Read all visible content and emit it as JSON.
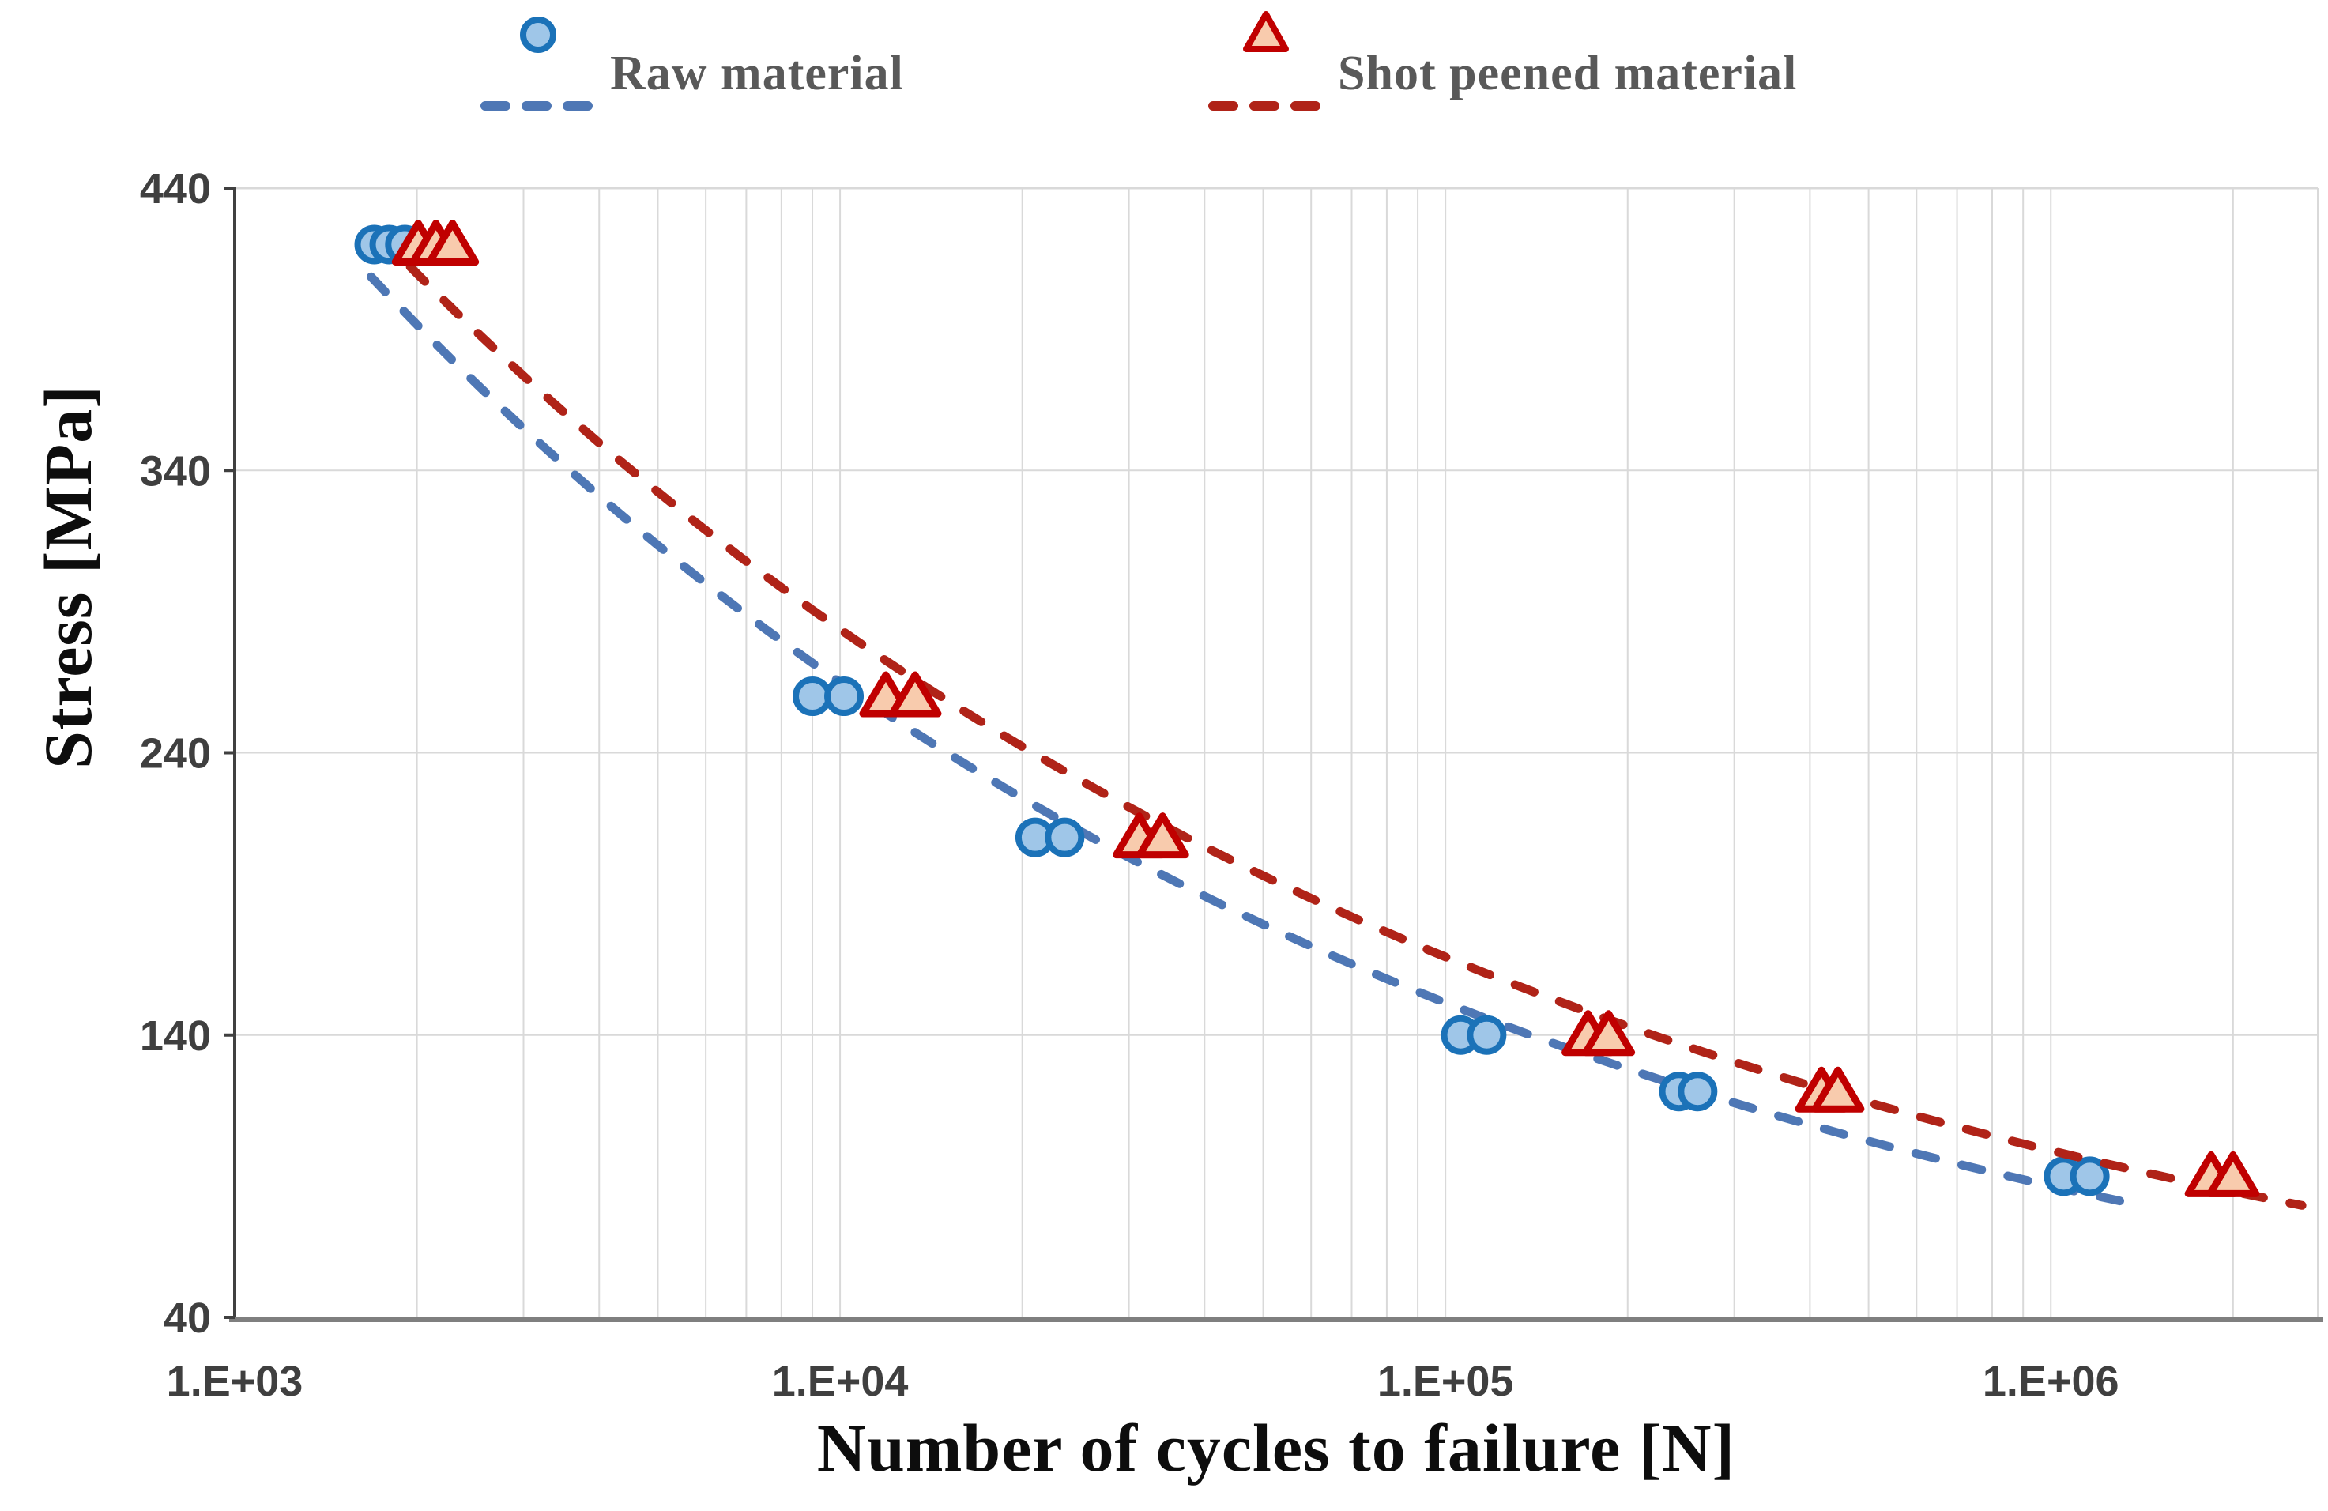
{
  "chart_data": {
    "type": "scatter",
    "title": "",
    "xlabel": "Number of cycles to failure [N]",
    "ylabel": "Stress [MPa]",
    "x_scale": "log",
    "xlim": [
      1000,
      2760000
    ],
    "ylim": [
      40,
      440
    ],
    "grid": true,
    "legend_position": "top",
    "gridline_color": "#D9D9D9",
    "left_axis_color": "#404040",
    "bottom_axis_color": "#7F7F7F",
    "tick_label_color": "#3F3F3F",
    "x_ticks": [
      {
        "value": 1000,
        "label": "1.E+03"
      },
      {
        "value": 10000,
        "label": "1.E+04"
      },
      {
        "value": 100000,
        "label": "1.E+05"
      },
      {
        "value": 1000000,
        "label": "1.E+06"
      }
    ],
    "y_ticks": [
      {
        "value": 40,
        "label": "40"
      },
      {
        "value": 140,
        "label": "140"
      },
      {
        "value": 240,
        "label": "240"
      },
      {
        "value": 340,
        "label": "340"
      },
      {
        "value": 440,
        "label": "440"
      }
    ],
    "series": [
      {
        "name": "Raw material",
        "marker": "circle",
        "marker_fill": "#9FC6E8",
        "marker_stroke": "#1B72B8",
        "line_color": "#4E77B5",
        "line_style": "dashed",
        "trendline": "power",
        "trendline_range": [
          1680,
          1300000
        ],
        "points": [
          [
            1700,
            420
          ],
          [
            1800,
            420
          ],
          [
            1910,
            420
          ],
          [
            9000,
            260
          ],
          [
            10150,
            260
          ],
          [
            21000,
            210
          ],
          [
            23500,
            210
          ],
          [
            106000,
            140
          ],
          [
            117000,
            140
          ],
          [
            243000,
            120
          ],
          [
            261000,
            120
          ],
          [
            1050000,
            90
          ],
          [
            1160000,
            90
          ]
        ]
      },
      {
        "name": "Shot peened material",
        "marker": "triangle",
        "marker_fill": "#F8CBAD",
        "marker_stroke": "#C00000",
        "line_color": "#B02318",
        "line_style": "dashed",
        "trendline": "power",
        "trendline_range": [
          1950,
          2600000
        ],
        "points": [
          [
            2010,
            420
          ],
          [
            2150,
            420
          ],
          [
            2290,
            420
          ],
          [
            11900,
            260
          ],
          [
            13300,
            260
          ],
          [
            31200,
            210
          ],
          [
            34100,
            210
          ],
          [
            172000,
            140
          ],
          [
            186000,
            140
          ],
          [
            418000,
            120
          ],
          [
            445000,
            120
          ],
          [
            1840000,
            90
          ],
          [
            2000000,
            90
          ]
        ]
      }
    ]
  }
}
